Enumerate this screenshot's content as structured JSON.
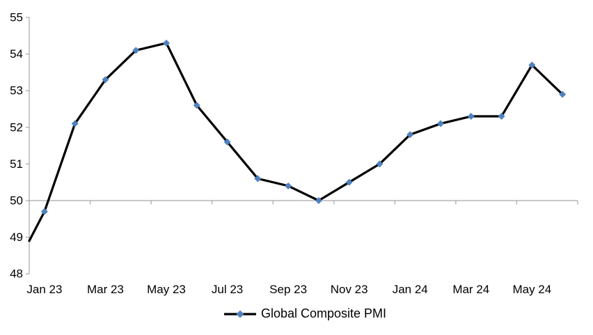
{
  "chart_data": {
    "type": "line",
    "title": "",
    "xlabel": "",
    "ylabel": "",
    "categories": [
      "Jan 23",
      "Feb 23",
      "Mar 23",
      "Apr 23",
      "May 23",
      "Jun 23",
      "Jul 23",
      "Aug 23",
      "Sep 23",
      "Oct 23",
      "Nov 23",
      "Dec 23",
      "Jan 24",
      "Feb 24",
      "Mar 24",
      "Apr 24",
      "May 24",
      "Jun 24"
    ],
    "series": [
      {
        "name": "Global Composite PMI",
        "values": [
          49.7,
          52.1,
          53.3,
          54.1,
          54.3,
          52.6,
          51.6,
          50.6,
          50.4,
          50.0,
          50.5,
          51.0,
          51.8,
          52.1,
          52.3,
          52.3,
          53.7,
          52.9
        ]
      }
    ],
    "edge_entry_value": 48.9,
    "x_tick_labels": [
      "Jan 23",
      "Mar 23",
      "May 23",
      "Jul 23",
      "Sep 23",
      "Nov 23",
      "Jan 24",
      "Mar 24",
      "May 24"
    ],
    "y_tick_labels": [
      48,
      49,
      50,
      51,
      52,
      53,
      54,
      55
    ],
    "ylim": [
      48,
      55
    ],
    "baseline_value": 50,
    "grid": "no gridlines; category axis line drawn at value 50 with tick marks",
    "legend": {
      "label": "Global Composite PMI",
      "position": "bottom-center"
    },
    "style": {
      "line_color": "#000000",
      "marker_color": "#4F81BD",
      "marker_shape": "diamond",
      "axis_color": "#A6A6A6",
      "text_color": "#000000",
      "background_color": "#FFFFFF"
    }
  }
}
